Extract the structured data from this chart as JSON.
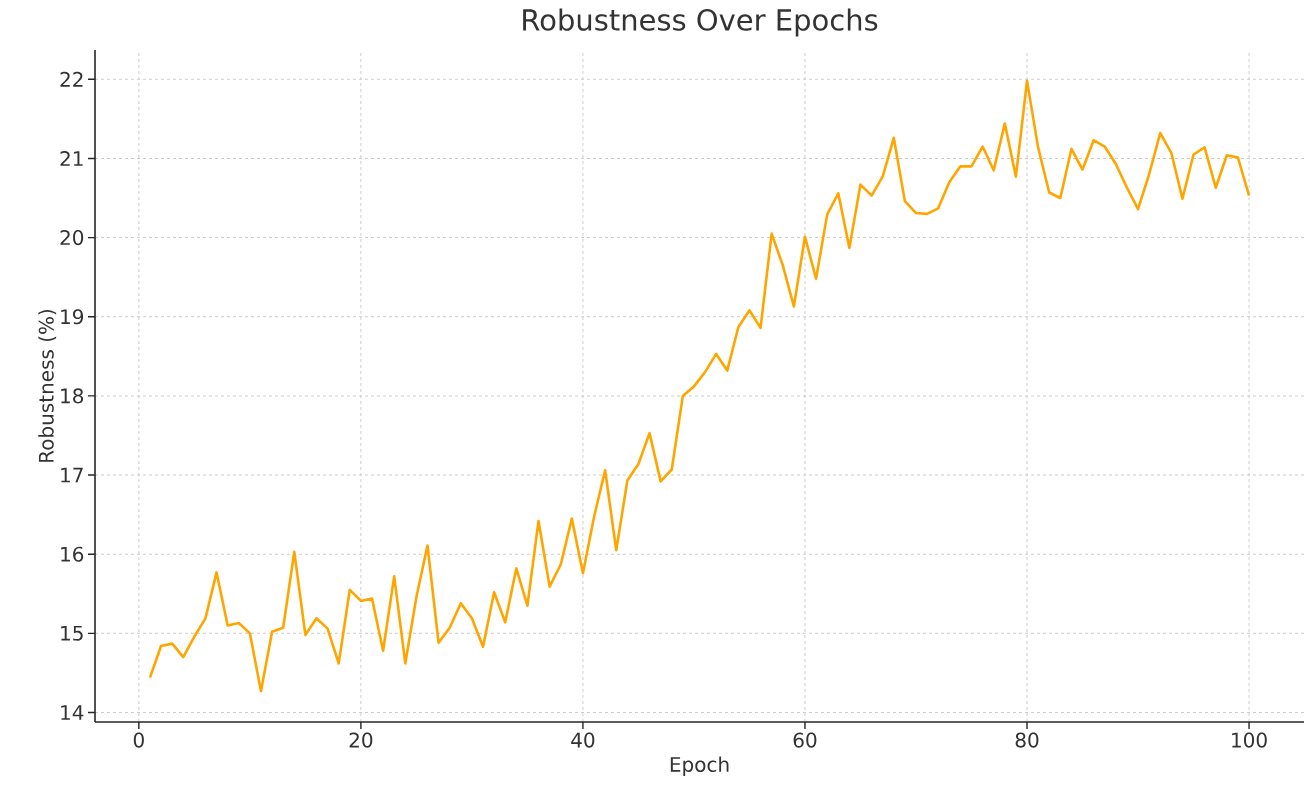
{
  "chart_data": {
    "type": "line",
    "title": "Robustness Over Epochs",
    "xlabel": "Epoch",
    "ylabel": "Robustness (%)",
    "x": [
      1,
      2,
      3,
      4,
      5,
      6,
      7,
      8,
      9,
      10,
      11,
      12,
      13,
      14,
      15,
      16,
      17,
      18,
      19,
      20,
      21,
      22,
      23,
      24,
      25,
      26,
      27,
      28,
      29,
      30,
      31,
      32,
      33,
      34,
      35,
      36,
      37,
      38,
      39,
      40,
      41,
      42,
      43,
      44,
      45,
      46,
      47,
      48,
      49,
      50,
      51,
      52,
      53,
      54,
      55,
      56,
      57,
      58,
      59,
      60,
      61,
      62,
      63,
      64,
      65,
      66,
      67,
      68,
      69,
      70,
      71,
      72,
      73,
      74,
      75,
      76,
      77,
      78,
      79,
      80,
      81,
      82,
      83,
      84,
      85,
      86,
      87,
      88,
      89,
      90,
      91,
      92,
      93,
      94,
      95,
      96,
      97,
      98,
      99,
      100
    ],
    "series": [
      {
        "color": "#ffa500",
        "values": [
          14.44,
          14.84,
          14.87,
          14.7,
          14.96,
          15.19,
          15.77,
          15.1,
          15.13,
          15.0,
          14.27,
          15.02,
          15.07,
          16.03,
          14.98,
          15.19,
          15.06,
          14.62,
          15.55,
          15.41,
          15.44,
          14.78,
          15.72,
          14.62,
          15.46,
          16.11,
          14.88,
          15.07,
          15.38,
          15.19,
          14.83,
          15.52,
          15.14,
          15.82,
          15.35,
          16.42,
          15.59,
          15.87,
          16.45,
          15.76,
          16.47,
          17.06,
          16.05,
          16.93,
          17.14,
          17.53,
          16.92,
          17.07,
          18.0,
          18.12,
          18.3,
          18.53,
          18.32,
          18.87,
          19.08,
          18.86,
          20.05,
          19.65,
          19.13,
          20.01,
          19.48,
          20.29,
          20.56,
          19.87,
          20.67,
          20.53,
          20.77,
          21.26,
          20.46,
          20.31,
          20.3,
          20.37,
          20.7,
          20.9,
          20.9,
          21.15,
          20.85,
          21.44,
          20.77,
          21.98,
          21.14,
          20.57,
          20.5,
          21.12,
          20.86,
          21.23,
          21.15,
          20.93,
          20.63,
          20.36,
          20.8,
          21.32,
          21.07,
          20.49,
          21.05,
          21.14,
          20.63,
          21.04,
          21.01,
          20.53
        ]
      }
    ],
    "xlim": [
      -3.95,
      104.95
    ],
    "ylim": [
      13.88,
      22.37
    ],
    "xticks": [
      0,
      20,
      40,
      60,
      80,
      100
    ],
    "yticks": [
      14,
      15,
      16,
      17,
      18,
      19,
      20,
      21,
      22
    ],
    "grid": true,
    "marker": "none",
    "line_style": "solid"
  }
}
